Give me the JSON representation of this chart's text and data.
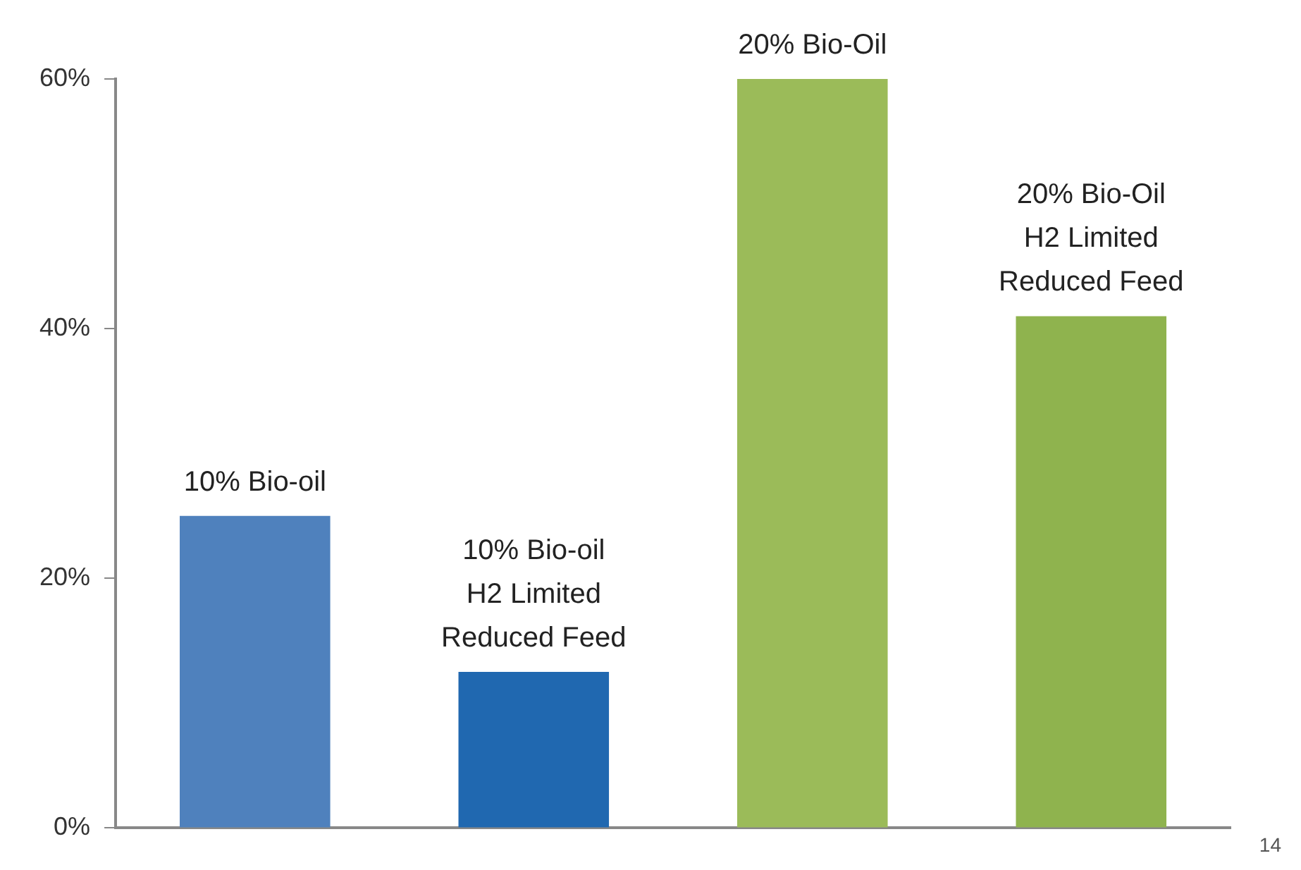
{
  "chart_data": {
    "type": "bar",
    "categories": [
      "10% Bio-oil",
      "10% Bio-oil\nH2 Limited\nReduced Feed",
      "20% Bio-Oil",
      "20% Bio-Oil\nH2 Limited\nReduced Feed"
    ],
    "values": [
      25,
      12.5,
      60,
      41
    ],
    "colors": [
      "#4f81bd",
      "#2068b0",
      "#9bbb59",
      "#8fb34e"
    ],
    "ylim": [
      0,
      60
    ],
    "yticks": [
      {
        "value": 0,
        "label": "0%"
      },
      {
        "value": 20,
        "label": "20%"
      },
      {
        "value": 40,
        "label": "40%"
      },
      {
        "value": 60,
        "label": "60%"
      }
    ],
    "tick_labels": "y",
    "grid": false,
    "legend": false,
    "annotations": [
      "14"
    ]
  }
}
